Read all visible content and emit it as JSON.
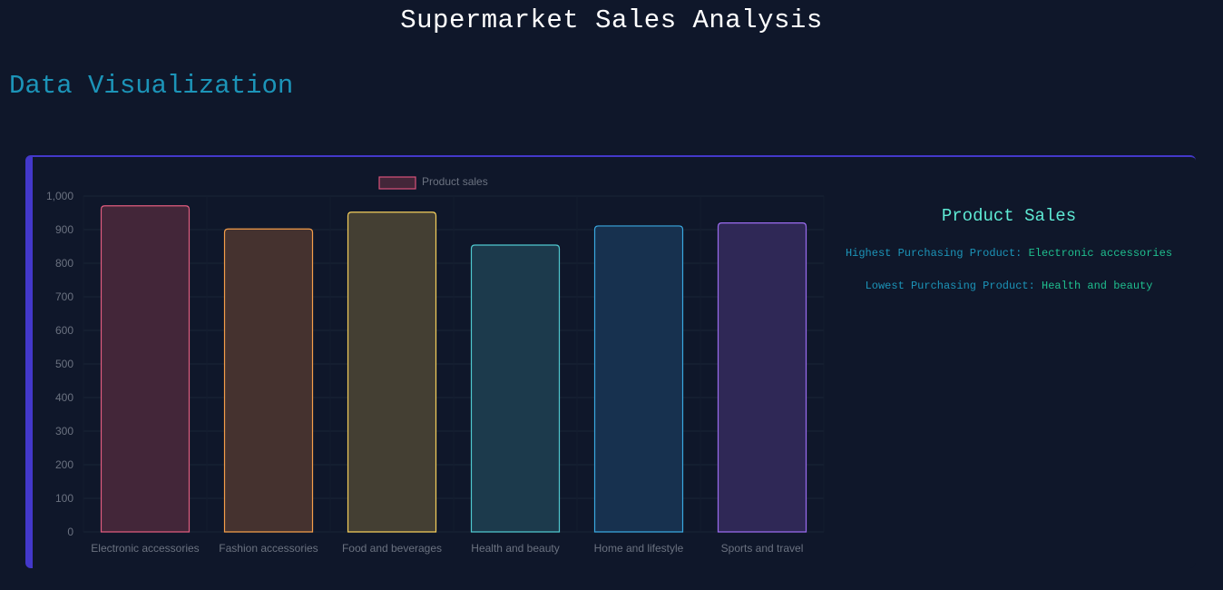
{
  "page": {
    "title": "Supermarket Sales Analysis",
    "section_title": "Data Visualization"
  },
  "summary": {
    "title": "Product Sales",
    "highest_label": "Highest Purchasing Product: ",
    "highest_value": "Electronic accessories",
    "lowest_label": "Lowest Purchasing Product: ",
    "lowest_value": "Health and beauty"
  },
  "chart_data": {
    "type": "bar",
    "categories": [
      "Electronic accessories",
      "Fashion accessories",
      "Food and beverages",
      "Health and beauty",
      "Home and lifestyle",
      "Sports and travel"
    ],
    "series": [
      {
        "name": "Product sales",
        "values": [
          971,
          902,
          952,
          854,
          911,
          920
        ]
      }
    ],
    "ylim": [
      0,
      1000
    ],
    "yticks": [
      0,
      100,
      200,
      300,
      400,
      500,
      600,
      700,
      800,
      900,
      1000
    ],
    "ytick_labels": [
      "0",
      "100",
      "200",
      "300",
      "400",
      "500",
      "600",
      "700",
      "800",
      "900",
      "1,000"
    ],
    "legend_position": "top-center",
    "grid": true,
    "bar_fill_colors": [
      "#432639",
      "#45322f",
      "#443f33",
      "#1c3a4c",
      "#17314f",
      "#2f2856"
    ],
    "bar_stroke_colors": [
      "#e05c7e",
      "#f59e4a",
      "#f5cf5c",
      "#4fc8cf",
      "#3aa8e0",
      "#9b6cf0"
    ]
  }
}
